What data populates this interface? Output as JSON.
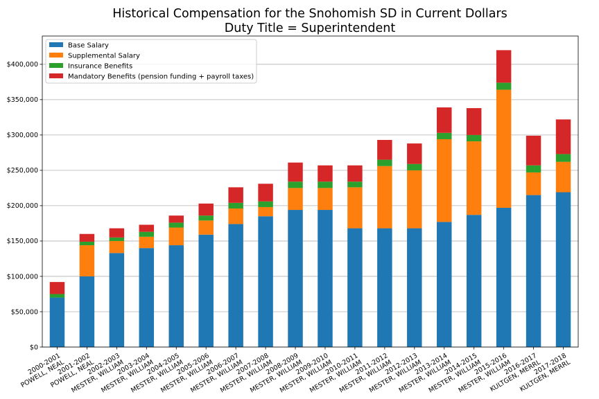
{
  "chart_data": {
    "type": "bar",
    "stacked": true,
    "title": "Historical Compensation for the Snohomish SD in Current Dollars",
    "subtitle": "Duty Title = Superintendent",
    "xlabel": "",
    "ylabel": "",
    "ylim": [
      0,
      440000
    ],
    "yticks": [
      0,
      50000,
      100000,
      150000,
      200000,
      250000,
      300000,
      350000,
      400000
    ],
    "ytick_labels": [
      "$0",
      "$50,000",
      "$100,000",
      "$150,000",
      "$200,000",
      "$250,000",
      "$300,000",
      "$350,000",
      "$400,000"
    ],
    "grid": "horizontal",
    "legend_position": "top-left",
    "categories": [
      [
        "2000-2001",
        "POWELL, NEAL"
      ],
      [
        "2001-2002",
        "POWELL, NEAL"
      ],
      [
        "2002-2003",
        "MESTER, WILLIAM"
      ],
      [
        "2003-2004",
        "MESTER, WILLIAM"
      ],
      [
        "2004-2005",
        "MESTER, WILLIAM"
      ],
      [
        "2005-2006",
        "MESTER, WILLIAM"
      ],
      [
        "2006-2007",
        "MESTER, WILLIAM"
      ],
      [
        "2007-2008",
        "MESTER, WILLIAM"
      ],
      [
        "2008-2009",
        "MESTER, WILLIAM"
      ],
      [
        "2009-2010",
        "MESTER, WILLIAM"
      ],
      [
        "2010-2011",
        "MESTER, WILLIAM"
      ],
      [
        "2011-2012",
        "MESTER, WILLIAM"
      ],
      [
        "2012-2013",
        "MESTER, WILLIAM"
      ],
      [
        "2013-2014",
        "MESTER, WILLIAM"
      ],
      [
        "2014-2015",
        "MESTER, WILLIAM"
      ],
      [
        "2015-2016",
        "MESTER, WILLIAM"
      ],
      [
        "2016-2017",
        "KULTGEN, MERRL"
      ],
      [
        "2017-2018",
        "KULTGEN, MERRL"
      ]
    ],
    "series": [
      {
        "name": "Base Salary",
        "color": "#1f77b4",
        "values": [
          70000,
          100000,
          133000,
          140000,
          144000,
          159000,
          174000,
          185000,
          194000,
          194000,
          168000,
          168000,
          168000,
          177000,
          187000,
          197000,
          215000,
          219000
        ]
      },
      {
        "name": "Supplemental Salary",
        "color": "#ff7f0e",
        "values": [
          0,
          44000,
          17000,
          16000,
          25000,
          20000,
          22000,
          13000,
          31000,
          31000,
          58000,
          88000,
          82000,
          117000,
          104000,
          167000,
          32000,
          43000
        ]
      },
      {
        "name": "Insurance Benefits",
        "color": "#2ca02c",
        "values": [
          5000,
          5000,
          5000,
          7000,
          7000,
          7000,
          8000,
          8000,
          9000,
          9000,
          8000,
          9000,
          9000,
          9000,
          9000,
          10000,
          10000,
          11000
        ]
      },
      {
        "name": "Mandatory Benefits (pension funding + payroll taxes)",
        "color": "#d62728",
        "values": [
          17000,
          11000,
          13000,
          10000,
          10000,
          17000,
          22000,
          25000,
          27000,
          23000,
          23000,
          28000,
          29000,
          36000,
          38000,
          46000,
          42000,
          49000
        ]
      }
    ]
  }
}
